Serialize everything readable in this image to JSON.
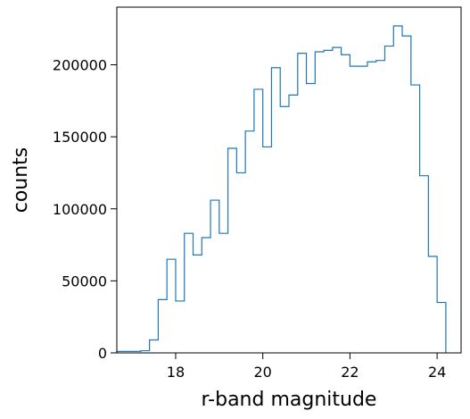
{
  "chart_data": {
    "type": "histogram",
    "title": "",
    "xlabel": "r-band magnitude",
    "ylabel": "counts",
    "xlim": [
      16.65,
      24.55
    ],
    "ylim": [
      0,
      240000
    ],
    "xticks": [
      18,
      20,
      22,
      24
    ],
    "xtick_labels": [
      "18",
      "20",
      "22",
      "24"
    ],
    "yticks": [
      0,
      50000,
      100000,
      150000,
      200000
    ],
    "ytick_labels": [
      "0",
      "50000",
      "100000",
      "150000",
      "200000"
    ],
    "grid": false,
    "legend": "none",
    "bin_edges": [
      16.65,
      17.2,
      17.4,
      17.6,
      17.8,
      18.0,
      18.2,
      18.4,
      18.6,
      18.8,
      19.0,
      19.2,
      19.4,
      19.6,
      19.8,
      20.0,
      20.2,
      20.4,
      20.6,
      20.8,
      21.0,
      21.2,
      21.4,
      21.6,
      21.8,
      22.0,
      22.2,
      22.4,
      22.6,
      22.8,
      23.0,
      23.2,
      23.4,
      23.6,
      23.8,
      24.0,
      24.2
    ],
    "counts": [
      1000,
      1500,
      9000,
      37000,
      65000,
      36000,
      83000,
      68000,
      80000,
      106000,
      83000,
      142000,
      125000,
      154000,
      183000,
      143000,
      198000,
      171000,
      179000,
      208000,
      187000,
      209000,
      210000,
      212000,
      207000,
      199000,
      199000,
      202000,
      203000,
      213000,
      227000,
      220000,
      186000,
      123000,
      67000,
      35000
    ],
    "color": "#1f77b4"
  }
}
